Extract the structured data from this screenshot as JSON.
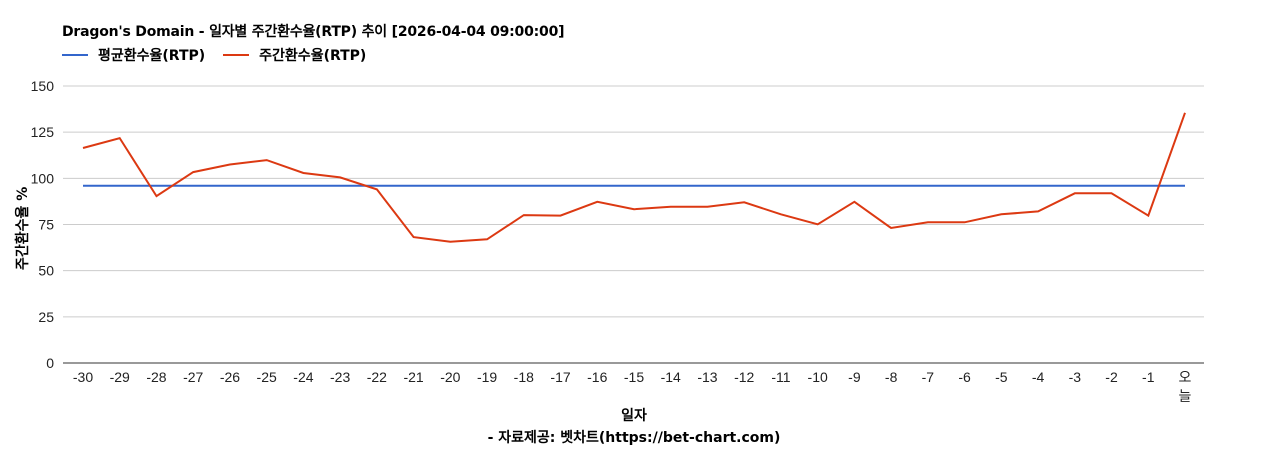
{
  "chart_data": {
    "type": "line",
    "title": "Dragon's Domain - 일자별 주간환수율(RTP) 추이 [2026-04-04 09:00:00]",
    "xlabel": "일자",
    "ylabel": "주간환수율 %",
    "source": "- 자료제공: 벳차트(https://bet-chart.com)",
    "ylim": [
      0,
      150
    ],
    "yticks": [
      0,
      25,
      50,
      75,
      100,
      125,
      150
    ],
    "grid": true,
    "legend_position": "top",
    "categories": [
      "-30",
      "-29",
      "-28",
      "-27",
      "-26",
      "-25",
      "-24",
      "-23",
      "-22",
      "-21",
      "-20",
      "-19",
      "-18",
      "-17",
      "-16",
      "-15",
      "-14",
      "-13",
      "-12",
      "-11",
      "-10",
      "-9",
      "-8",
      "-7",
      "-6",
      "-5",
      "-4",
      "-3",
      "-2",
      "-1",
      "오늘"
    ],
    "series": [
      {
        "name": "평균환수율(RTP)",
        "color": "#3366cc",
        "values": [
          96,
          96,
          96,
          96,
          96,
          96,
          96,
          96,
          96,
          96,
          96,
          96,
          96,
          96,
          96,
          96,
          96,
          96,
          96,
          96,
          96,
          96,
          96,
          96,
          96,
          96,
          96,
          96,
          96,
          96,
          96
        ]
      },
      {
        "name": "주간환수율(RTP)",
        "color": "#dc3912",
        "values": [
          116.4,
          121.8,
          90.4,
          103.4,
          107.5,
          109.9,
          102.9,
          100.5,
          94.0,
          68.2,
          65.7,
          67.0,
          80.1,
          79.8,
          87.3,
          83.3,
          84.6,
          84.6,
          87.0,
          80.5,
          75.1,
          87.3,
          73.1,
          76.2,
          76.2,
          80.5,
          82.1,
          91.9,
          91.9,
          79.8,
          135.5
        ]
      }
    ]
  },
  "labels": {
    "title": "Dragon's Domain - 일자별 주간환수율(RTP) 추이 [2026-04-04 09:00:00]",
    "legend_avg": "평균환수율(RTP)",
    "legend_weekly": "주간환수율(RTP)",
    "xlabel": "일자",
    "ylabel": "주간환수율 %",
    "source": "- 자료제공: 벳차트(https://bet-chart.com)"
  },
  "colors": {
    "avg": "#3366cc",
    "weekly": "#dc3912",
    "grid": "#cccccc",
    "axis": "#333333"
  }
}
